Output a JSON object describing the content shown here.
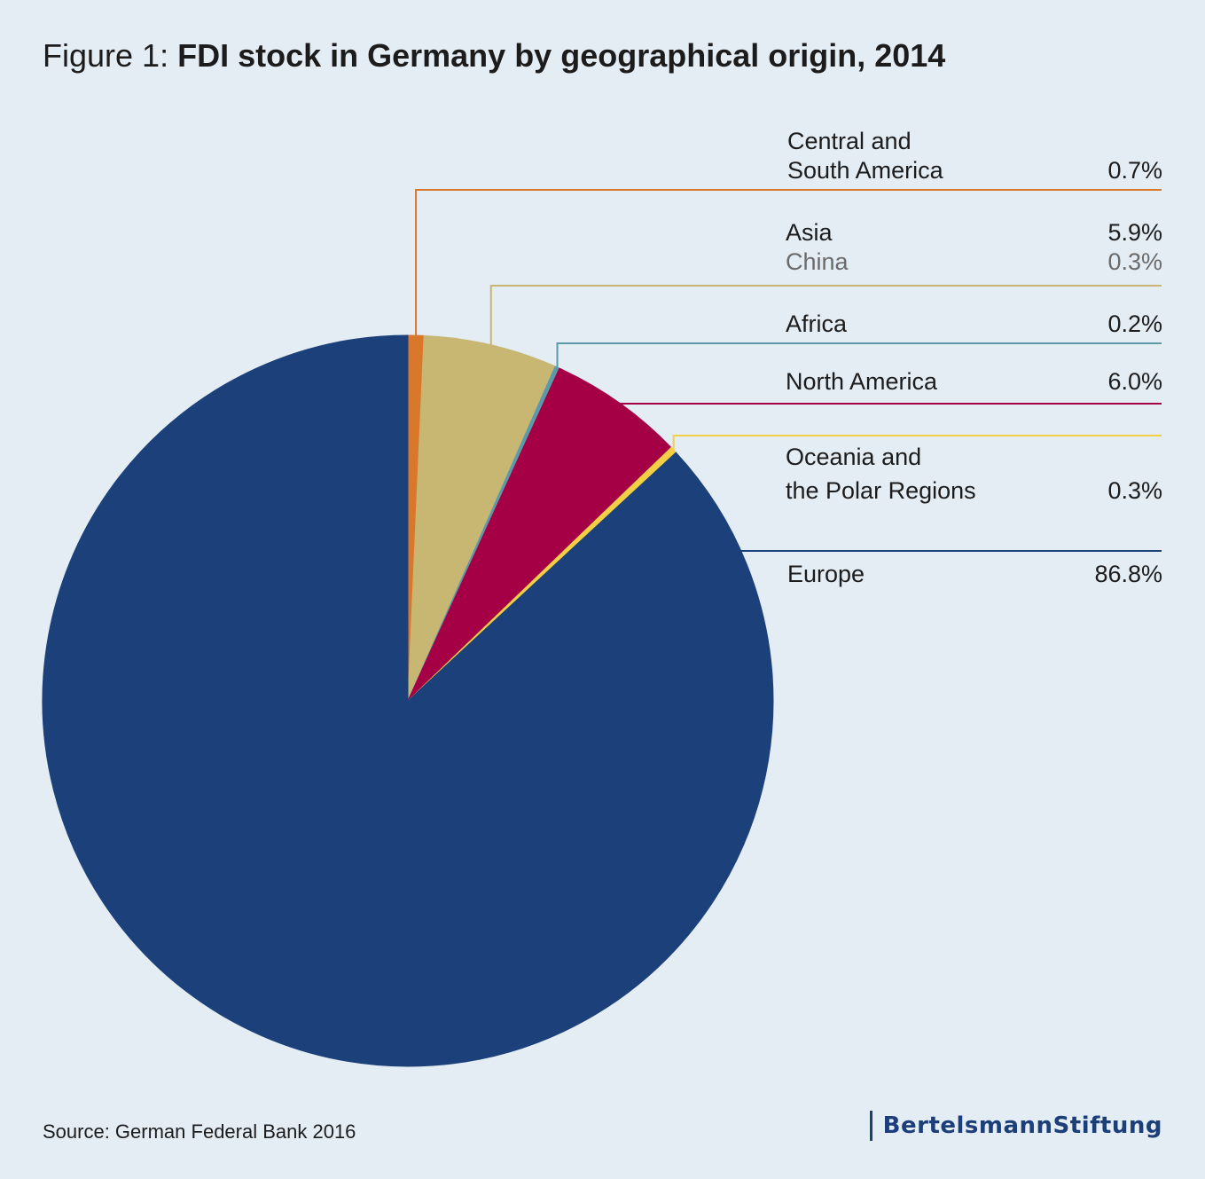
{
  "title": {
    "prefix": "Figure 1: ",
    "main": "FDI stock in Germany by geographical origin, 2014"
  },
  "chart_data": {
    "type": "pie",
    "title": "Figure 1: FDI stock in Germany by geographical origin, 2014",
    "start": "12 o'clock",
    "direction": "clockwise",
    "slices": [
      {
        "name": "Central and South America",
        "value": 0.7,
        "label": "0.7%",
        "color": "#d9782b"
      },
      {
        "name": "Asia",
        "value": 5.9,
        "label": "5.9%",
        "color": "#c7b772"
      },
      {
        "name": "Africa",
        "value": 0.2,
        "label": "0.2%",
        "color": "#5b9aa8"
      },
      {
        "name": "North America",
        "value": 6.0,
        "label": "6.0%",
        "color": "#a50046"
      },
      {
        "name": "Oceania and the Polar Regions",
        "value": 0.3,
        "label": "0.3%",
        "color": "#f2cf45"
      },
      {
        "name": "Europe",
        "value": 86.8,
        "label": "86.8%",
        "color": "#1c417a"
      }
    ],
    "sub_items": [
      {
        "parent": "Asia",
        "name": "China",
        "label": "0.3%"
      }
    ]
  },
  "legend": {
    "central_south_america": {
      "line1": "Central and",
      "line2": "South America",
      "value": "0.7%"
    },
    "asia": {
      "name": "Asia",
      "value": "5.9%"
    },
    "china": {
      "name": "China",
      "value": "0.3%"
    },
    "africa": {
      "name": "Africa",
      "value": "0.2%"
    },
    "north_america": {
      "name": "North America",
      "value": "6.0%"
    },
    "oceania": {
      "line1": "Oceania and",
      "line2": "the Polar Regions",
      "value": "0.3%"
    },
    "europe": {
      "name": "Europe",
      "value": "86.8%"
    }
  },
  "source": "Source: German Federal Bank 2016",
  "brand": "BertelsmannStiftung"
}
